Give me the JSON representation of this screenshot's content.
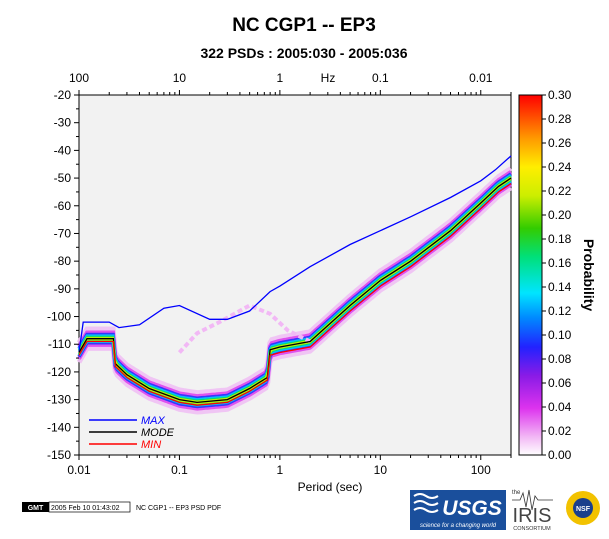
{
  "header": {
    "title": "NC CGP1 -- EP3",
    "subtitle": "322 PSDs : 2005:030 - 2005:036"
  },
  "chart_data": {
    "type": "heatmap",
    "title": "NC CGP1 -- EP3",
    "subtitle": "322 PSDs : 2005:030 - 2005:036",
    "xlabel": "Period (sec)",
    "x_scale": "log",
    "xlim": [
      0.01,
      200
    ],
    "x_ticks": [
      "0.01",
      "0.1",
      "1",
      "10",
      "100"
    ],
    "top_axis_label": "Hz",
    "top_ticks": [
      "100",
      "10",
      "1",
      "0.1",
      "0.01"
    ],
    "ylabel": "",
    "ylim": [
      -150,
      -20
    ],
    "y_ticks": [
      "-20",
      "-30",
      "-40",
      "-50",
      "-60",
      "-70",
      "-80",
      "-90",
      "-100",
      "-110",
      "-120",
      "-130",
      "-140",
      "-150"
    ],
    "colorbar": {
      "label": "Probability",
      "range": [
        0,
        0.3
      ],
      "ticks": [
        "0.00",
        "0.02",
        "0.04",
        "0.06",
        "0.08",
        "0.10",
        "0.12",
        "0.14",
        "0.16",
        "0.18",
        "0.20",
        "0.22",
        "0.24",
        "0.26",
        "0.28",
        "0.30"
      ]
    },
    "legend_position": "bottom-left",
    "series": [
      {
        "name": "MAX",
        "color": "#0000ff",
        "x": [
          0.01,
          0.011,
          0.02,
          0.025,
          0.04,
          0.07,
          0.1,
          0.2,
          0.3,
          0.5,
          0.8,
          1,
          2,
          5,
          10,
          20,
          50,
          100,
          140,
          200
        ],
        "y": [
          -113,
          -102,
          -102,
          -104,
          -103,
          -97,
          -96,
          -101,
          -101,
          -98,
          -91,
          -89,
          -82,
          -74,
          -69,
          -64,
          -57,
          -51,
          -47,
          -42
        ]
      },
      {
        "name": "MODE",
        "color": "#000000",
        "x": [
          0.01,
          0.012,
          0.022,
          0.023,
          0.03,
          0.05,
          0.1,
          0.15,
          0.3,
          0.5,
          0.75,
          0.8,
          1,
          2,
          5,
          10,
          20,
          50,
          100,
          150,
          200
        ],
        "y": [
          -113,
          -108,
          -108,
          -117,
          -121,
          -126,
          -130,
          -131,
          -130,
          -126,
          -122,
          -112,
          -111,
          -109,
          -96,
          -87,
          -80,
          -69,
          -59,
          -53,
          -50
        ]
      },
      {
        "name": "MIN",
        "color": "#ff0000",
        "x": [
          0.01,
          0.012,
          0.022,
          0.023,
          0.03,
          0.05,
          0.1,
          0.15,
          0.3,
          0.5,
          0.75,
          0.8,
          1,
          2,
          5,
          10,
          20,
          50,
          100,
          150,
          200
        ],
        "y": [
          -114,
          -109,
          -109,
          -118,
          -122,
          -127,
          -131,
          -132,
          -131,
          -127,
          -123,
          -114,
          -113,
          -111,
          -98,
          -89,
          -82,
          -71,
          -61,
          -55,
          -52
        ]
      }
    ]
  },
  "footer": {
    "gmt_logo": "GMT",
    "timestamp": "2005 Feb 10 01:43:02",
    "caption": "NC CGP1 -- EP3 PSD PDF",
    "usgs_logo": "USGS",
    "usgs_tagline": "science for a changing world",
    "iris_the": "the",
    "iris_logo": "IRIS",
    "iris_consortium": "CONSORTIUM",
    "nsf_logo": "NSF"
  }
}
